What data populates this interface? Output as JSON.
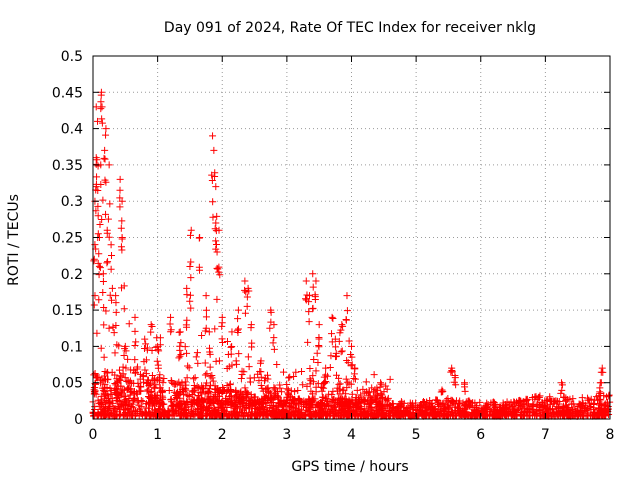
{
  "chart_data": {
    "type": "scatter",
    "title": "Day 091 of 2024, Rate Of TEC Index for receiver nklg",
    "xlabel": "GPS time / hours",
    "ylabel": "ROTI / TECUs",
    "xlim": [
      0,
      8
    ],
    "ylim": [
      0,
      0.5
    ],
    "x_ticks": [
      0,
      1,
      2,
      3,
      4,
      5,
      6,
      7,
      8
    ],
    "x_tick_labels": [
      "0",
      "1",
      "2",
      "3",
      "4",
      "5",
      "6",
      "7",
      "8"
    ],
    "y_ticks": [
      0,
      0.05,
      0.1,
      0.15,
      0.2,
      0.25,
      0.3,
      0.35,
      0.4,
      0.45,
      0.5
    ],
    "y_tick_labels": [
      "0",
      "0.05",
      "0.1",
      "0.15",
      "0.2",
      "0.25",
      "0.3",
      "0.35",
      "0.4",
      "0.45",
      "0.5"
    ],
    "grid": true,
    "marker": "+",
    "series_color": "#ff0000",
    "series": [
      {
        "name": "ROTI",
        "baseline_envelope": [
          {
            "x": 0.0,
            "y": 0.06
          },
          {
            "x": 0.5,
            "y": 0.07
          },
          {
            "x": 1.0,
            "y": 0.06
          },
          {
            "x": 1.5,
            "y": 0.045
          },
          {
            "x": 2.0,
            "y": 0.04
          },
          {
            "x": 2.5,
            "y": 0.03
          },
          {
            "x": 3.0,
            "y": 0.025
          },
          {
            "x": 3.5,
            "y": 0.025
          },
          {
            "x": 4.0,
            "y": 0.025
          },
          {
            "x": 4.5,
            "y": 0.02
          },
          {
            "x": 5.0,
            "y": 0.02
          },
          {
            "x": 5.5,
            "y": 0.025
          },
          {
            "x": 6.0,
            "y": 0.02
          },
          {
            "x": 6.5,
            "y": 0.02
          },
          {
            "x": 7.0,
            "y": 0.03
          },
          {
            "x": 7.5,
            "y": 0.025
          },
          {
            "x": 8.0,
            "y": 0.03
          }
        ],
        "points": [
          {
            "x": 0.02,
            "y": 0.22
          },
          {
            "x": 0.03,
            "y": 0.3
          },
          {
            "x": 0.05,
            "y": 0.36
          },
          {
            "x": 0.05,
            "y": 0.43
          },
          {
            "x": 0.07,
            "y": 0.41
          },
          {
            "x": 0.08,
            "y": 0.28
          },
          {
            "x": 0.1,
            "y": 0.25
          },
          {
            "x": 0.12,
            "y": 0.35
          },
          {
            "x": 0.13,
            "y": 0.45
          },
          {
            "x": 0.14,
            "y": 0.43
          },
          {
            "x": 0.16,
            "y": 0.2
          },
          {
            "x": 0.18,
            "y": 0.37
          },
          {
            "x": 0.2,
            "y": 0.4
          },
          {
            "x": 0.22,
            "y": 0.26
          },
          {
            "x": 0.25,
            "y": 0.35
          },
          {
            "x": 0.28,
            "y": 0.24
          },
          {
            "x": 0.3,
            "y": 0.18
          },
          {
            "x": 0.35,
            "y": 0.17
          },
          {
            "x": 0.42,
            "y": 0.33
          },
          {
            "x": 0.45,
            "y": 0.3
          },
          {
            "x": 0.45,
            "y": 0.25
          },
          {
            "x": 0.5,
            "y": 0.1
          },
          {
            "x": 0.65,
            "y": 0.14
          },
          {
            "x": 0.8,
            "y": 0.11
          },
          {
            "x": 0.9,
            "y": 0.13
          },
          {
            "x": 1.0,
            "y": 0.1
          },
          {
            "x": 1.2,
            "y": 0.14
          },
          {
            "x": 1.35,
            "y": 0.12
          },
          {
            "x": 1.45,
            "y": 0.18
          },
          {
            "x": 1.5,
            "y": 0.21
          },
          {
            "x": 1.52,
            "y": 0.26
          },
          {
            "x": 1.65,
            "y": 0.25
          },
          {
            "x": 1.75,
            "y": 0.17
          },
          {
            "x": 1.8,
            "y": 0.12
          },
          {
            "x": 1.85,
            "y": 0.39
          },
          {
            "x": 1.87,
            "y": 0.37
          },
          {
            "x": 1.9,
            "y": 0.32
          },
          {
            "x": 1.9,
            "y": 0.27
          },
          {
            "x": 1.92,
            "y": 0.23
          },
          {
            "x": 1.95,
            "y": 0.26
          },
          {
            "x": 2.0,
            "y": 0.14
          },
          {
            "x": 2.15,
            "y": 0.12
          },
          {
            "x": 2.25,
            "y": 0.15
          },
          {
            "x": 2.35,
            "y": 0.19
          },
          {
            "x": 2.4,
            "y": 0.18
          },
          {
            "x": 2.45,
            "y": 0.13
          },
          {
            "x": 2.6,
            "y": 0.08
          },
          {
            "x": 2.75,
            "y": 0.15
          },
          {
            "x": 2.8,
            "y": 0.13
          },
          {
            "x": 3.3,
            "y": 0.19
          },
          {
            "x": 3.35,
            "y": 0.17
          },
          {
            "x": 3.4,
            "y": 0.2
          },
          {
            "x": 3.45,
            "y": 0.19
          },
          {
            "x": 3.5,
            "y": 0.13
          },
          {
            "x": 3.6,
            "y": 0.07
          },
          {
            "x": 3.7,
            "y": 0.14
          },
          {
            "x": 3.75,
            "y": 0.11
          },
          {
            "x": 3.85,
            "y": 0.13
          },
          {
            "x": 3.93,
            "y": 0.17
          },
          {
            "x": 4.0,
            "y": 0.1
          },
          {
            "x": 4.05,
            "y": 0.07
          },
          {
            "x": 4.45,
            "y": 0.05
          },
          {
            "x": 5.4,
            "y": 0.04
          },
          {
            "x": 5.55,
            "y": 0.07
          },
          {
            "x": 5.6,
            "y": 0.06
          },
          {
            "x": 5.75,
            "y": 0.05
          },
          {
            "x": 7.25,
            "y": 0.05
          },
          {
            "x": 7.85,
            "y": 0.05
          },
          {
            "x": 7.88,
            "y": 0.07
          }
        ]
      }
    ]
  }
}
